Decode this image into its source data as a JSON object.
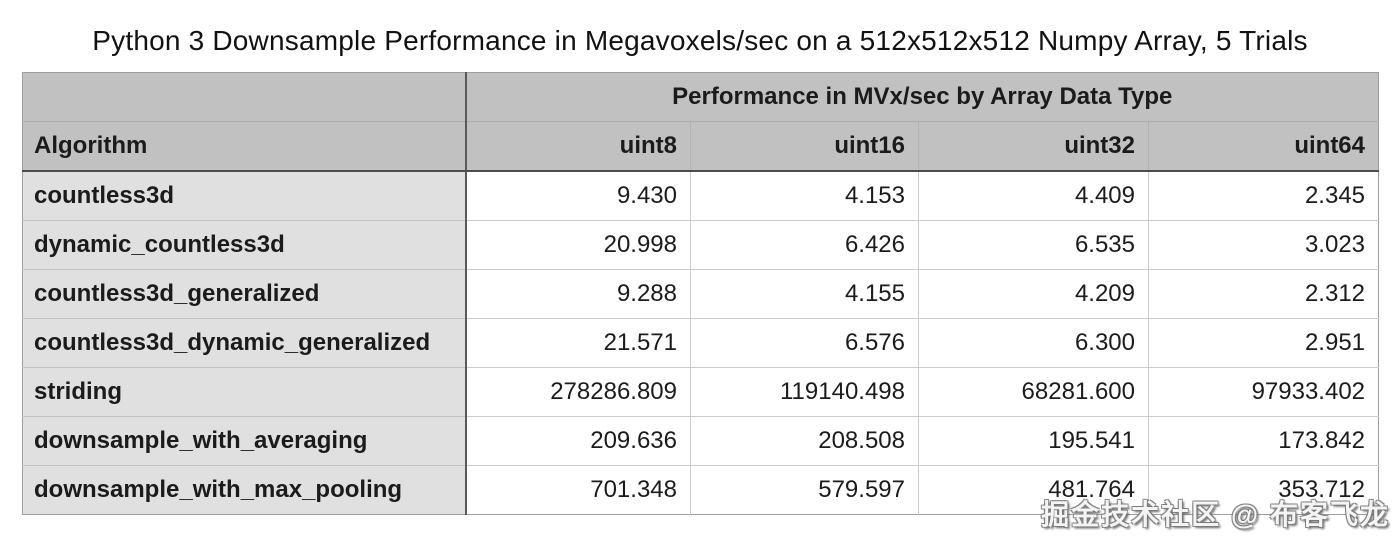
{
  "chart_data": {
    "type": "table",
    "title": "Python 3 Downsample Performance in Megavoxels/sec on a 512x512x512 Numpy Array, 5 Trials",
    "group_header": "Performance in MVx/sec by Array Data Type",
    "columns": [
      "Algorithm",
      "uint8",
      "uint16",
      "uint32",
      "uint64"
    ],
    "rows": [
      {
        "algorithm": "countless3d",
        "cells": [
          "9.430",
          "4.153",
          "4.409",
          "2.345"
        ]
      },
      {
        "algorithm": "dynamic_countless3d",
        "cells": [
          "20.998",
          "6.426",
          "6.535",
          "3.023"
        ]
      },
      {
        "algorithm": "countless3d_generalized",
        "cells": [
          "9.288",
          "4.155",
          "4.209",
          "2.312"
        ]
      },
      {
        "algorithm": "countless3d_dynamic_generalized",
        "cells": [
          "21.571",
          "6.576",
          "6.300",
          "2.951"
        ]
      },
      {
        "algorithm": "striding",
        "cells": [
          "278286.809",
          "119140.498",
          "68281.600",
          "97933.402"
        ]
      },
      {
        "algorithm": "downsample_with_averaging",
        "cells": [
          "209.636",
          "208.508",
          "195.541",
          "173.842"
        ]
      },
      {
        "algorithm": "downsample_with_max_pooling",
        "cells": [
          "701.348",
          "579.597",
          "481.764",
          "353.712"
        ]
      }
    ]
  },
  "watermark": {
    "text": "掘金技术社区 @ 布客飞龙"
  }
}
